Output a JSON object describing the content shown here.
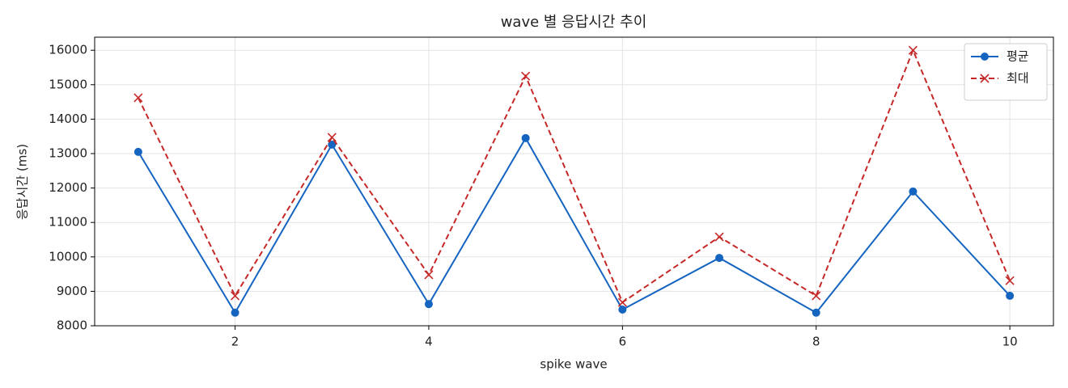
{
  "chart_data": {
    "type": "line",
    "title": "wave 별 응답시간 추이",
    "x_label": "spike wave",
    "y_label": "응답시간 (ms)",
    "x": [
      1,
      2,
      3,
      4,
      5,
      6,
      7,
      8,
      9,
      10
    ],
    "series": [
      {
        "name": "평균",
        "color": "#1565c0",
        "linestyle": "solid",
        "marker": "circle",
        "values": [
          13050,
          8380,
          13260,
          8630,
          13450,
          8470,
          9970,
          8380,
          11900,
          8870
        ]
      },
      {
        "name": "최대",
        "color": "#c62828",
        "linestyle": "dashed",
        "marker": "x",
        "values": [
          14620,
          8870,
          13470,
          9480,
          15250,
          8680,
          10580,
          8870,
          16000,
          9310
        ]
      }
    ],
    "xlim": [
      0.55,
      10.45
    ],
    "xticks": [
      2,
      4,
      6,
      8,
      10
    ],
    "ylim": [
      8000,
      16380
    ],
    "yticks": [
      8000,
      9000,
      10000,
      11000,
      12000,
      13000,
      14000,
      15000,
      16000
    ],
    "grid": true,
    "legend": "upper right"
  }
}
